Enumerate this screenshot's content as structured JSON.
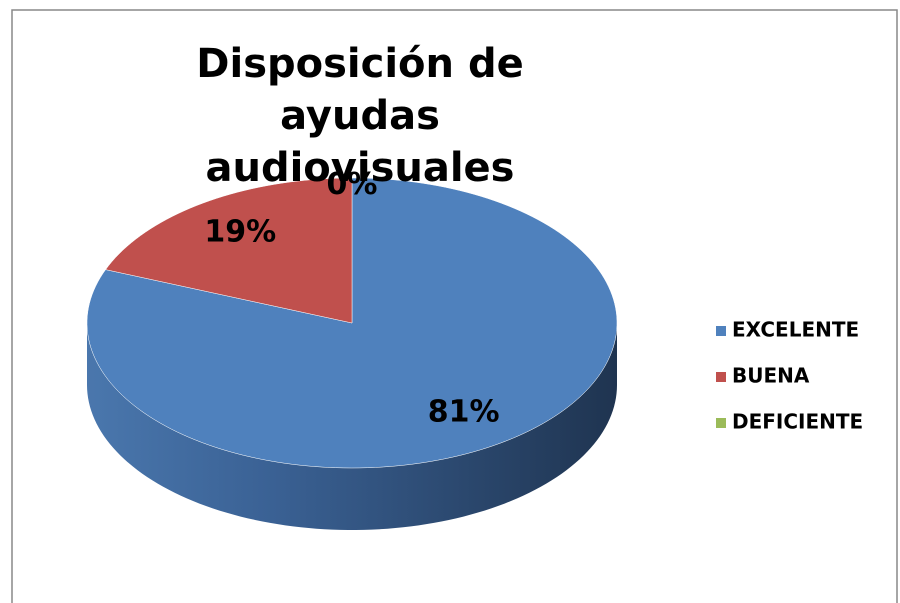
{
  "chart_data": {
    "type": "pie3d",
    "title": "Disposición de ayudas audiovisuales",
    "categories": [
      "EXCELENTE",
      "BUENA",
      "DEFICIENTE"
    ],
    "values": [
      81,
      19,
      0
    ],
    "value_labels": [
      "81%",
      "19%",
      "0%"
    ],
    "colors": [
      "#4f81bd",
      "#c0504d",
      "#9bbb59"
    ],
    "legend": "right"
  }
}
